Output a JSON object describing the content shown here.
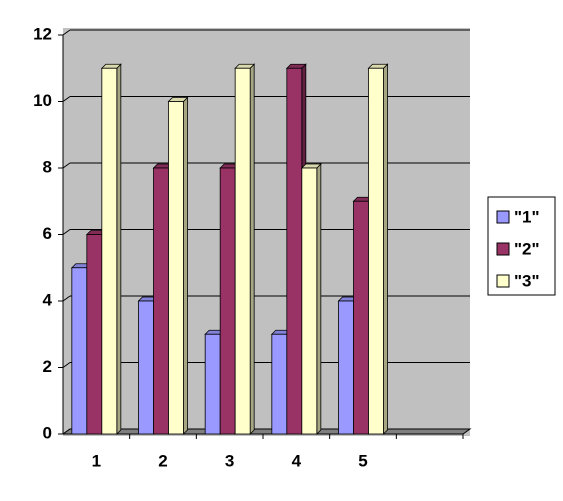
{
  "chart_data": {
    "type": "bar",
    "categories": [
      "1",
      "2",
      "3",
      "4",
      "5",
      null
    ],
    "series": [
      {
        "name": "\"1\"",
        "color": "#9999ff",
        "values": [
          5,
          4,
          3,
          3,
          4,
          null
        ]
      },
      {
        "name": "\"2\"",
        "color": "#993366",
        "values": [
          6,
          8,
          8,
          11,
          7,
          null
        ]
      },
      {
        "name": "\"3\"",
        "color": "#ffffcc",
        "values": [
          11,
          10,
          11,
          8,
          11,
          null
        ]
      }
    ],
    "ylim": [
      0,
      12
    ],
    "yticks": [
      0,
      2,
      4,
      6,
      8,
      10,
      12
    ],
    "grid": true,
    "legend": "right"
  }
}
